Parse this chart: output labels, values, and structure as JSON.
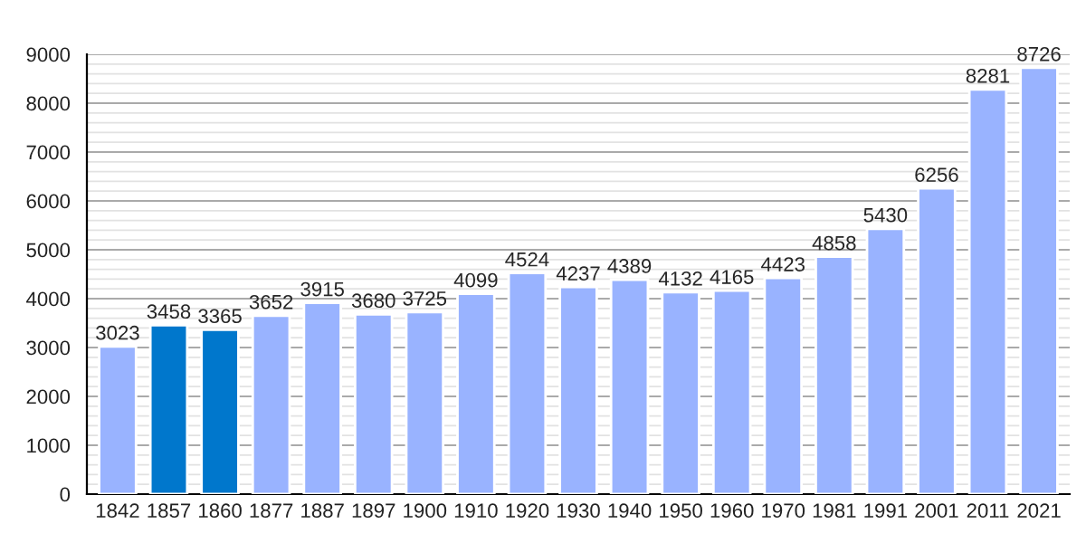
{
  "chart_data": {
    "type": "bar",
    "categories": [
      "1842",
      "1857",
      "1860",
      "1877",
      "1887",
      "1897",
      "1900",
      "1910",
      "1920",
      "1930",
      "1940",
      "1950",
      "1960",
      "1970",
      "1981",
      "1991",
      "2001",
      "2011",
      "2021"
    ],
    "values": [
      3023,
      3458,
      3365,
      3652,
      3915,
      3680,
      3725,
      4099,
      4524,
      4237,
      4389,
      4132,
      4165,
      4423,
      4858,
      5430,
      6256,
      8281,
      8726
    ],
    "colors": [
      "#99b3ff",
      "#0077cc",
      "#0077cc",
      "#99b3ff",
      "#99b3ff",
      "#99b3ff",
      "#99b3ff",
      "#99b3ff",
      "#99b3ff",
      "#99b3ff",
      "#99b3ff",
      "#99b3ff",
      "#99b3ff",
      "#99b3ff",
      "#99b3ff",
      "#99b3ff",
      "#99b3ff",
      "#99b3ff",
      "#99b3ff"
    ],
    "ylim": [
      0,
      9000
    ],
    "yticks": [
      0,
      1000,
      2000,
      3000,
      4000,
      5000,
      6000,
      7000,
      8000,
      9000
    ],
    "grid": "y",
    "data_labels": true
  }
}
